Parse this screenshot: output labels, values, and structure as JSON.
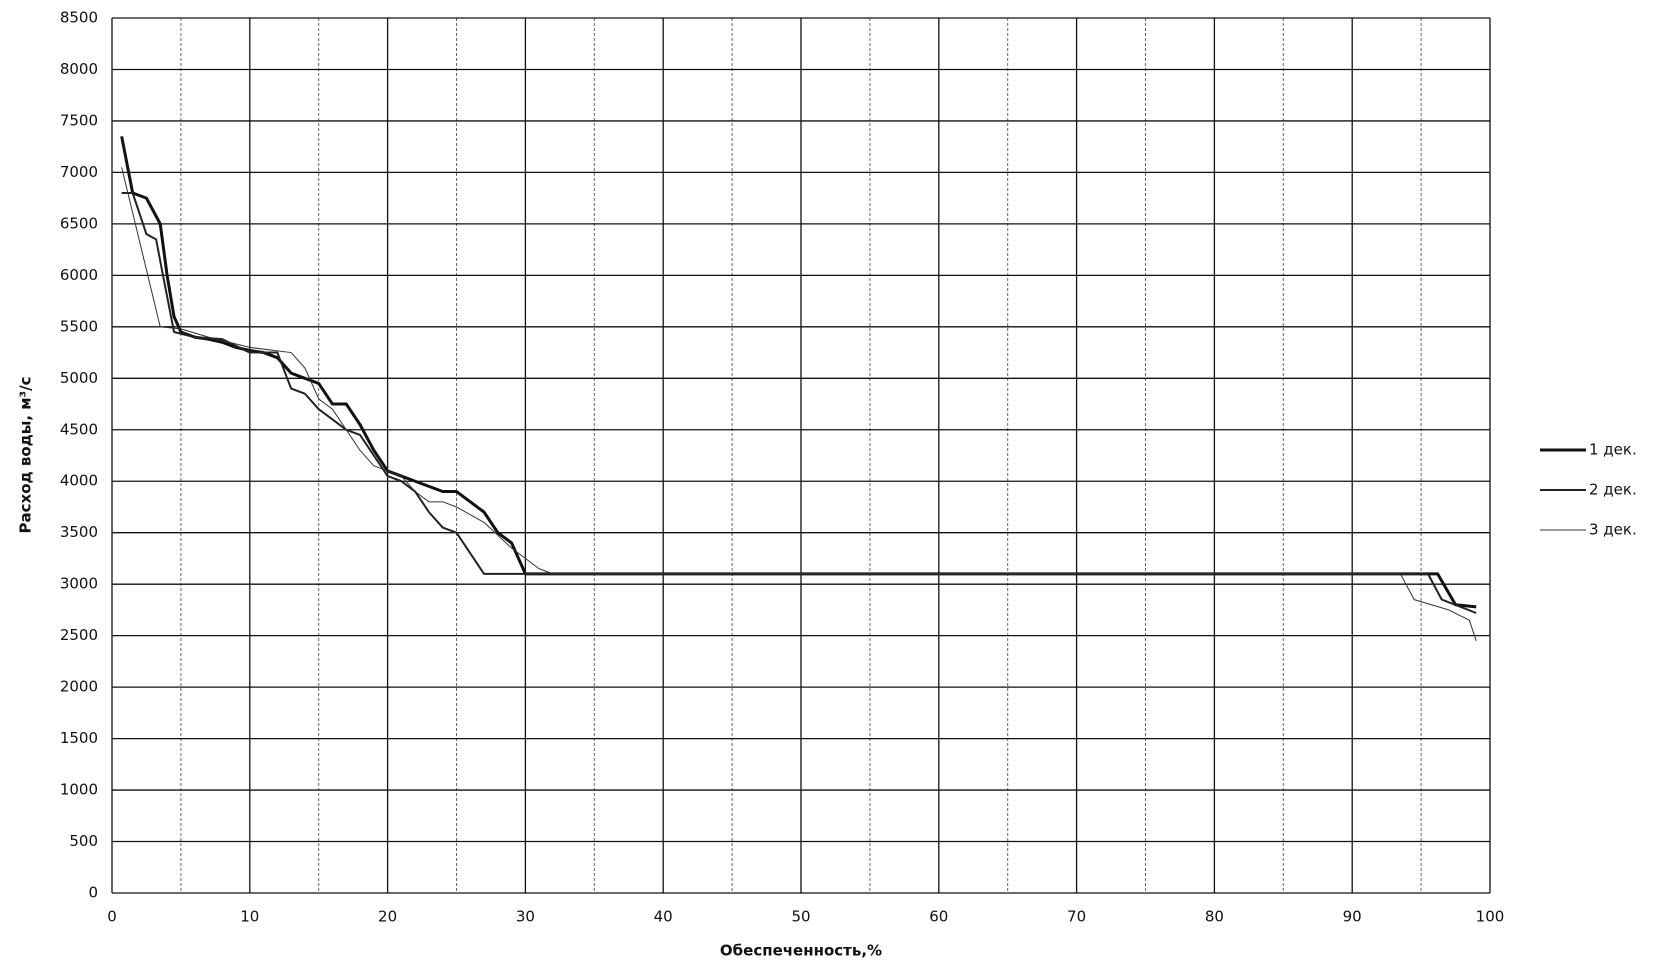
{
  "chart_data": {
    "type": "line",
    "x_label": "Обеспеченность,%",
    "y_label": "Расход воды, м³/с",
    "xlim": [
      0,
      100
    ],
    "xticks": [
      0,
      10,
      20,
      30,
      40,
      50,
      60,
      70,
      80,
      90,
      100
    ],
    "ylim": [
      0,
      8500
    ],
    "yticks": [
      0,
      500,
      1000,
      1500,
      2000,
      2500,
      3000,
      3500,
      4000,
      4500,
      5000,
      5500,
      6000,
      6500,
      7000,
      7500,
      8000,
      8500
    ],
    "grid": true,
    "legend": "right",
    "series": [
      {
        "name": "1 дек.",
        "color": "#111111",
        "line_width": 3,
        "x": [
          0.7,
          1.5,
          2.5,
          3.5,
          4,
          4.5,
          5,
          6,
          7,
          8,
          9,
          10,
          11,
          12,
          13,
          14,
          15,
          16,
          17,
          18,
          19,
          20,
          21,
          22,
          23,
          24,
          25,
          26,
          27,
          28,
          29,
          30,
          95,
          96.2,
          97.5,
          99
        ],
        "values": [
          7350,
          6800,
          6750,
          6500,
          6000,
          5600,
          5450,
          5400,
          5380,
          5350,
          5300,
          5270,
          5250,
          5200,
          5050,
          5000,
          4950,
          4750,
          4750,
          4550,
          4300,
          4100,
          4050,
          4000,
          3950,
          3900,
          3900,
          3800,
          3700,
          3500,
          3400,
          3100,
          3100,
          3100,
          2800,
          2780
        ]
      },
      {
        "name": "2 дек.",
        "color": "#222222",
        "line_width": 2,
        "x": [
          0.7,
          1.5,
          2.5,
          3.2,
          3.7,
          4.5,
          6,
          8,
          10,
          12,
          13,
          14,
          15,
          16,
          17,
          18,
          19,
          20,
          21,
          22,
          23,
          24,
          25,
          26,
          27,
          30,
          93.5,
          95.5,
          96.5,
          99
        ],
        "values": [
          6800,
          6800,
          6400,
          6350,
          6000,
          5450,
          5400,
          5380,
          5250,
          5250,
          4900,
          4850,
          4700,
          4600,
          4500,
          4450,
          4250,
          4050,
          4000,
          3900,
          3700,
          3550,
          3500,
          3300,
          3100,
          3100,
          3100,
          3100,
          2850,
          2720
        ]
      },
      {
        "name": "3 дек.",
        "color": "#333333",
        "line_width": 1,
        "x": [
          0.7,
          3.5,
          5,
          7,
          10,
          13,
          14,
          15,
          16,
          17,
          18,
          19,
          20,
          21,
          22,
          23,
          24,
          25,
          27,
          29,
          31,
          32,
          93.5,
          94.5,
          97,
          98.5,
          99
        ],
        "values": [
          7050,
          5500,
          5480,
          5400,
          5300,
          5250,
          5100,
          4800,
          4700,
          4500,
          4300,
          4150,
          4100,
          4050,
          3900,
          3800,
          3800,
          3750,
          3600,
          3350,
          3150,
          3100,
          3100,
          2850,
          2750,
          2650,
          2450
        ]
      }
    ]
  }
}
